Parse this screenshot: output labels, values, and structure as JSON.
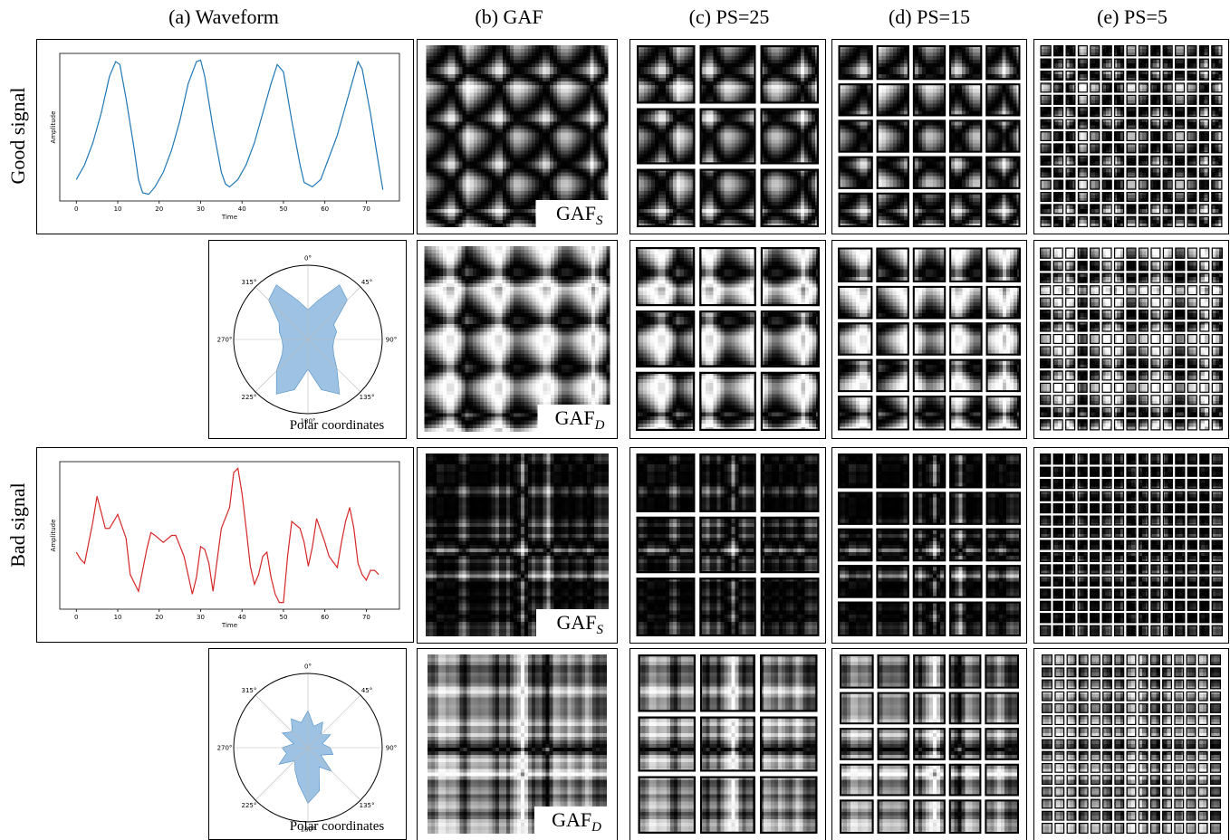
{
  "columns": [
    "(a) Waveform",
    "(b) GAF",
    "(c) PS=25",
    "(d) PS=15",
    "(e) PS=5"
  ],
  "row_labels": [
    "Good signal",
    "Bad signal"
  ],
  "waveforms": [
    {
      "type": "line",
      "x_label": "Time",
      "y_label": "Amplitude",
      "color": "#1f77b4",
      "xlim": [
        -4,
        78
      ],
      "xticks": [
        0,
        10,
        20,
        30,
        40,
        50,
        60,
        70
      ],
      "x": [
        0,
        2,
        4,
        6,
        8,
        9.5,
        10.5,
        12,
        14,
        15,
        16,
        17.5,
        19,
        21,
        23,
        25,
        27,
        29,
        30,
        31,
        33,
        35,
        36,
        37,
        39,
        41,
        43,
        45,
        47,
        48.5,
        50,
        52,
        54,
        55,
        57,
        59,
        61,
        63,
        65,
        67,
        68,
        69,
        71,
        73,
        74
      ],
      "values": [
        0.15,
        0.25,
        0.4,
        0.6,
        0.85,
        0.95,
        0.93,
        0.7,
        0.35,
        0.15,
        0.06,
        0.05,
        0.1,
        0.2,
        0.35,
        0.55,
        0.8,
        0.95,
        0.96,
        0.85,
        0.5,
        0.2,
        0.12,
        0.1,
        0.15,
        0.25,
        0.4,
        0.6,
        0.8,
        0.93,
        0.88,
        0.55,
        0.25,
        0.13,
        0.1,
        0.15,
        0.3,
        0.45,
        0.65,
        0.85,
        0.95,
        0.9,
        0.6,
        0.25,
        0.08
      ]
    },
    {
      "type": "line",
      "x_label": "Time",
      "y_label": "Amplitude",
      "color": "#d62728",
      "xlim": [
        -4,
        78
      ],
      "xticks": [
        0,
        10,
        20,
        30,
        40,
        50,
        60,
        70
      ],
      "x": [
        0,
        1,
        2,
        4,
        5,
        7,
        8,
        9,
        10,
        12,
        13,
        15,
        17,
        18,
        19,
        21,
        23,
        24,
        26,
        28,
        29,
        30,
        31,
        32,
        33,
        35,
        37,
        38,
        39,
        40,
        41,
        42,
        43,
        44,
        45,
        46,
        47,
        48,
        49,
        50,
        51,
        52,
        54,
        55,
        56,
        57,
        58,
        60,
        61,
        63,
        64,
        65,
        66,
        67,
        68,
        69,
        70,
        71,
        72,
        73
      ],
      "values": [
        0.38,
        0.33,
        0.3,
        0.6,
        0.78,
        0.55,
        0.55,
        0.6,
        0.65,
        0.48,
        0.22,
        0.1,
        0.4,
        0.52,
        0.5,
        0.45,
        0.5,
        0.5,
        0.35,
        0.08,
        0.2,
        0.42,
        0.4,
        0.3,
        0.1,
        0.55,
        0.7,
        0.95,
        0.98,
        0.8,
        0.55,
        0.28,
        0.15,
        0.22,
        0.35,
        0.38,
        0.2,
        0.08,
        0.02,
        0.02,
        0.35,
        0.6,
        0.55,
        0.45,
        0.28,
        0.42,
        0.62,
        0.45,
        0.35,
        0.27,
        0.45,
        0.6,
        0.7,
        0.55,
        0.3,
        0.22,
        0.18,
        0.25,
        0.25,
        0.22
      ]
    }
  ],
  "polar": [
    {
      "type": "polar",
      "label": "Polar coordinates",
      "color": "#9ec2e3",
      "angle_labels": [
        "0°",
        "45°",
        "90°",
        "135°",
        "180°",
        "225°",
        "270°",
        "315°"
      ],
      "radii": [
        0.4,
        0.55,
        0.85,
        0.75,
        0.4,
        0.4,
        0.35,
        0.35,
        0.4,
        0.55,
        0.85,
        0.7,
        0.4,
        0.7,
        0.85,
        0.6,
        0.4,
        0.35,
        0.35,
        0.4,
        0.45,
        0.75,
        0.85,
        0.55
      ]
    },
    {
      "type": "polar",
      "label": "Polar coordinates",
      "color": "#9ec2e3",
      "angle_labels": [
        "0°",
        "45°",
        "90°",
        "135°",
        "180°",
        "225°",
        "270°",
        "315°"
      ],
      "radii": [
        0.5,
        0.3,
        0.4,
        0.25,
        0.35,
        0.2,
        0.3,
        0.35,
        0.2,
        0.45,
        0.3,
        0.6,
        0.75,
        0.5,
        0.35,
        0.25,
        0.45,
        0.3,
        0.35,
        0.2,
        0.4,
        0.3,
        0.45,
        0.35
      ]
    }
  ],
  "gaf_labels": [
    {
      "base": "GAF",
      "sub": "S"
    },
    {
      "base": "GAF",
      "sub": "D"
    },
    {
      "base": "GAF",
      "sub": "S"
    },
    {
      "base": "GAF",
      "sub": "D"
    }
  ]
}
